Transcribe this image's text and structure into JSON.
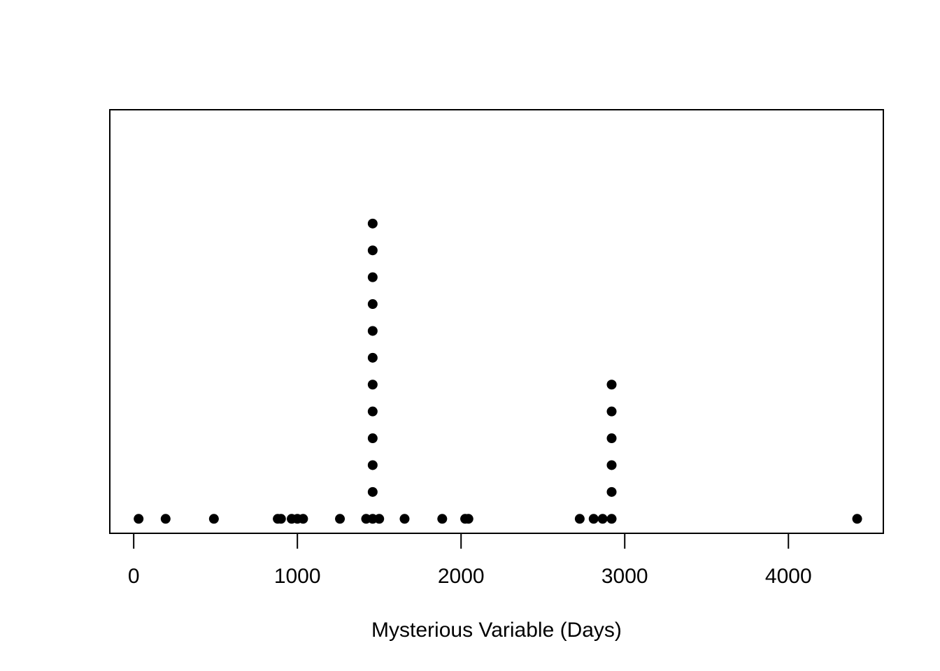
{
  "chart_data": {
    "type": "scatter",
    "title": "",
    "xlabel": "Mysterious Variable (Days)",
    "ylabel": "",
    "xlim": [
      -146,
      4580
    ],
    "ylim": [
      0.46,
      16.24
    ],
    "x_ticks": [
      0,
      1000,
      2000,
      3000,
      4000
    ],
    "x_tick_labels": [
      "0",
      "1000",
      "2000",
      "3000",
      "4000"
    ],
    "grid": false,
    "legend": "none",
    "point_color": "#000000",
    "points": [
      {
        "x": 30,
        "y": 1
      },
      {
        "x": 195,
        "y": 1
      },
      {
        "x": 490,
        "y": 1
      },
      {
        "x": 880,
        "y": 1
      },
      {
        "x": 900,
        "y": 1
      },
      {
        "x": 965,
        "y": 1
      },
      {
        "x": 1000,
        "y": 1
      },
      {
        "x": 1035,
        "y": 1
      },
      {
        "x": 1260,
        "y": 1
      },
      {
        "x": 1420,
        "y": 1
      },
      {
        "x": 1460,
        "y": 1
      },
      {
        "x": 1460,
        "y": 2
      },
      {
        "x": 1460,
        "y": 3
      },
      {
        "x": 1460,
        "y": 4
      },
      {
        "x": 1460,
        "y": 5
      },
      {
        "x": 1460,
        "y": 6
      },
      {
        "x": 1460,
        "y": 7
      },
      {
        "x": 1460,
        "y": 8
      },
      {
        "x": 1460,
        "y": 9
      },
      {
        "x": 1460,
        "y": 10
      },
      {
        "x": 1460,
        "y": 11
      },
      {
        "x": 1460,
        "y": 12
      },
      {
        "x": 1500,
        "y": 1
      },
      {
        "x": 1655,
        "y": 1
      },
      {
        "x": 1885,
        "y": 1
      },
      {
        "x": 2025,
        "y": 1
      },
      {
        "x": 2045,
        "y": 1
      },
      {
        "x": 2725,
        "y": 1
      },
      {
        "x": 2810,
        "y": 1
      },
      {
        "x": 2865,
        "y": 1
      },
      {
        "x": 2920,
        "y": 1
      },
      {
        "x": 2920,
        "y": 2
      },
      {
        "x": 2920,
        "y": 3
      },
      {
        "x": 2920,
        "y": 4
      },
      {
        "x": 2920,
        "y": 5
      },
      {
        "x": 2920,
        "y": 6
      },
      {
        "x": 4420,
        "y": 1
      }
    ]
  }
}
